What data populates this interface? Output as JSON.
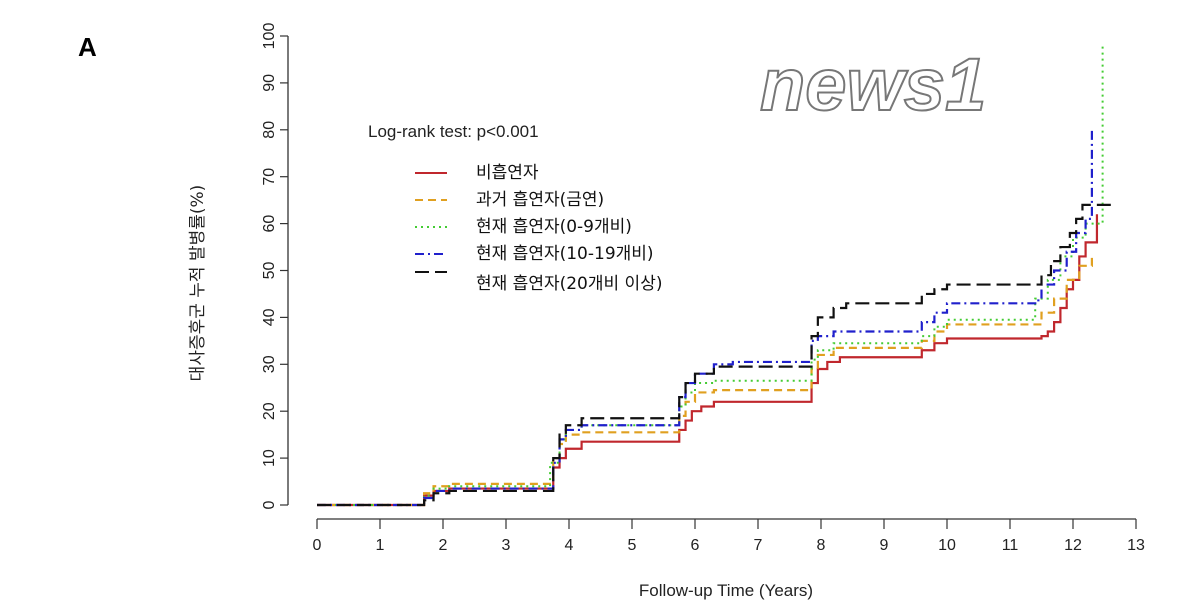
{
  "panel_label": "A",
  "watermark": "news1",
  "chart_data": {
    "type": "line",
    "step": true,
    "title": "",
    "annotation": "Log-rank test: p<0.001",
    "xlabel": "Follow-up Time (Years)",
    "ylabel": "대사증후군 누적 발병률(%)",
    "xlim": [
      0,
      13
    ],
    "ylim": [
      0,
      100
    ],
    "xticks": [
      "0",
      "1",
      "2",
      "3",
      "4",
      "5",
      "6",
      "7",
      "8",
      "9",
      "10",
      "11",
      "12",
      "13"
    ],
    "yticks": [
      "0",
      "10",
      "20",
      "30",
      "40",
      "50",
      "60",
      "70",
      "80",
      "90",
      "100"
    ],
    "grid": false,
    "legend_position": "top-left",
    "series": [
      {
        "name": "비흡연자",
        "color": "#c0272d",
        "dash": "solid",
        "points": [
          [
            0,
            0
          ],
          [
            1.65,
            0
          ],
          [
            1.7,
            2
          ],
          [
            1.85,
            3
          ],
          [
            2.1,
            3.5
          ],
          [
            3.7,
            3.5
          ],
          [
            3.75,
            8
          ],
          [
            3.85,
            10
          ],
          [
            3.95,
            12
          ],
          [
            4.2,
            13.5
          ],
          [
            5.7,
            13.5
          ],
          [
            5.75,
            16
          ],
          [
            5.85,
            18
          ],
          [
            5.95,
            20
          ],
          [
            6.1,
            21
          ],
          [
            6.3,
            22
          ],
          [
            7.8,
            22
          ],
          [
            7.85,
            26
          ],
          [
            7.95,
            29
          ],
          [
            8.1,
            30.5
          ],
          [
            8.3,
            31.5
          ],
          [
            9.5,
            31.5
          ],
          [
            9.6,
            33
          ],
          [
            9.8,
            34.5
          ],
          [
            10,
            35.5
          ],
          [
            11.4,
            35.5
          ],
          [
            11.5,
            36
          ],
          [
            11.6,
            37
          ],
          [
            11.7,
            39
          ],
          [
            11.8,
            42
          ],
          [
            11.9,
            46
          ],
          [
            12,
            48
          ],
          [
            12.1,
            53
          ],
          [
            12.2,
            56
          ],
          [
            12.35,
            56
          ],
          [
            12.38,
            62
          ]
        ]
      },
      {
        "name": "과거 흡연자(금연)",
        "color": "#e0a020",
        "dash": "dashed",
        "points": [
          [
            0,
            0
          ],
          [
            1.65,
            0
          ],
          [
            1.7,
            2.5
          ],
          [
            1.85,
            4
          ],
          [
            2.1,
            4.5
          ],
          [
            3.7,
            4.5
          ],
          [
            3.75,
            10
          ],
          [
            3.85,
            13
          ],
          [
            3.95,
            15
          ],
          [
            4.2,
            15.5
          ],
          [
            5.7,
            15.5
          ],
          [
            5.75,
            19
          ],
          [
            5.85,
            22
          ],
          [
            6,
            24
          ],
          [
            6.3,
            24.5
          ],
          [
            7.8,
            24.5
          ],
          [
            7.85,
            29
          ],
          [
            7.95,
            32
          ],
          [
            8.2,
            33.5
          ],
          [
            9.5,
            33.5
          ],
          [
            9.6,
            35
          ],
          [
            9.8,
            37
          ],
          [
            10,
            38.5
          ],
          [
            11.4,
            38.5
          ],
          [
            11.5,
            41
          ],
          [
            11.7,
            44
          ],
          [
            11.9,
            48
          ],
          [
            12.1,
            51
          ],
          [
            12.3,
            53
          ]
        ]
      },
      {
        "name": "현재 흡연자(0-9개비)",
        "color": "#44cc33",
        "dash": "dotted",
        "points": [
          [
            0,
            0
          ],
          [
            1.65,
            0
          ],
          [
            1.7,
            2
          ],
          [
            1.85,
            3.5
          ],
          [
            2.1,
            4
          ],
          [
            3.6,
            4
          ],
          [
            3.7,
            9
          ],
          [
            3.85,
            14
          ],
          [
            3.95,
            16
          ],
          [
            4.2,
            17
          ],
          [
            5.7,
            17
          ],
          [
            5.75,
            21
          ],
          [
            5.85,
            24
          ],
          [
            6,
            26
          ],
          [
            6.3,
            26.5
          ],
          [
            7.8,
            26.5
          ],
          [
            7.85,
            31
          ],
          [
            7.95,
            33
          ],
          [
            8.2,
            34.5
          ],
          [
            9.5,
            34.5
          ],
          [
            9.6,
            36
          ],
          [
            9.8,
            38
          ],
          [
            10,
            39.5
          ],
          [
            11.3,
            39.5
          ],
          [
            11.4,
            44
          ],
          [
            11.6,
            48
          ],
          [
            11.8,
            53
          ],
          [
            12,
            57
          ],
          [
            12.2,
            60
          ],
          [
            12.45,
            60
          ],
          [
            12.47,
            98.5
          ]
        ]
      },
      {
        "name": "현재 흡연자(10-19개비)",
        "color": "#2020cc",
        "dash": "dashdot",
        "points": [
          [
            0,
            0
          ],
          [
            1.65,
            0
          ],
          [
            1.7,
            1.5
          ],
          [
            1.85,
            3
          ],
          [
            2.1,
            3.5
          ],
          [
            3.7,
            3.5
          ],
          [
            3.75,
            9
          ],
          [
            3.85,
            14
          ],
          [
            3.95,
            16
          ],
          [
            4.2,
            17
          ],
          [
            5.7,
            17
          ],
          [
            5.75,
            23
          ],
          [
            5.85,
            26
          ],
          [
            6,
            28
          ],
          [
            6.3,
            30
          ],
          [
            6.6,
            30.5
          ],
          [
            7.8,
            30.5
          ],
          [
            7.85,
            35
          ],
          [
            7.95,
            36
          ],
          [
            8.2,
            37
          ],
          [
            9.5,
            37
          ],
          [
            9.6,
            39
          ],
          [
            9.8,
            41
          ],
          [
            10,
            43
          ],
          [
            11.4,
            43
          ],
          [
            11.45,
            44
          ],
          [
            11.5,
            47
          ],
          [
            11.7,
            50
          ],
          [
            11.9,
            54
          ],
          [
            12.05,
            58
          ],
          [
            12.2,
            61
          ],
          [
            12.28,
            61
          ],
          [
            12.3,
            80.6
          ]
        ]
      },
      {
        "name": "현재 흡연자(20개비 이상)",
        "color": "#111111",
        "dash": "longdash",
        "points": [
          [
            0,
            0
          ],
          [
            1.65,
            0
          ],
          [
            1.7,
            1
          ],
          [
            1.85,
            2.5
          ],
          [
            2.1,
            3
          ],
          [
            3.65,
            3
          ],
          [
            3.75,
            10
          ],
          [
            3.85,
            15
          ],
          [
            3.95,
            17
          ],
          [
            4.2,
            18.5
          ],
          [
            5.7,
            18.5
          ],
          [
            5.75,
            23
          ],
          [
            5.85,
            26
          ],
          [
            6,
            28
          ],
          [
            6.3,
            29.5
          ],
          [
            7.8,
            29.5
          ],
          [
            7.85,
            36
          ],
          [
            7.95,
            40
          ],
          [
            8.2,
            42
          ],
          [
            8.4,
            43
          ],
          [
            9.5,
            43
          ],
          [
            9.6,
            45
          ],
          [
            9.8,
            46
          ],
          [
            10,
            47
          ],
          [
            11.4,
            47
          ],
          [
            11.5,
            49
          ],
          [
            11.65,
            52
          ],
          [
            11.8,
            55
          ],
          [
            11.95,
            58
          ],
          [
            12.05,
            61
          ],
          [
            12.15,
            64
          ],
          [
            12.6,
            64
          ]
        ]
      }
    ]
  }
}
